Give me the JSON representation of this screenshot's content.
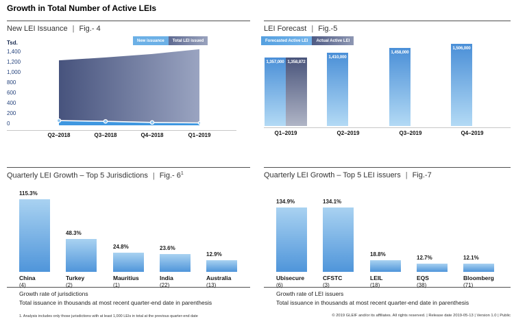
{
  "page_title": "Growth in Total Number of Active LEIs",
  "ui": {
    "pipe": "|"
  },
  "colors": {
    "bar_blue_top": "#4a8fd7",
    "bar_blue_bottom": "#b3daf5",
    "growth_bar_top": "#a9d2f1",
    "growth_bar_bottom": "#4f95da",
    "slate_dark": "#47537d",
    "slate_light": "#9aa4c1",
    "new_issuance_band": "#3f97e0",
    "axis_label_navy": "#24427c",
    "divider_gray": "#4d4d4d"
  },
  "chart_data": [
    {
      "type": "area",
      "title": "New LEI Issuance",
      "fig_label": "Fig.- 4",
      "y_unit": "Tsd.",
      "legend": [
        "New issuance",
        "Total LEI issued"
      ],
      "legend_position": "top-right",
      "grid": false,
      "x": [
        "Q2–2018",
        "Q3–2018",
        "Q4–2018",
        "Q1–2019"
      ],
      "series": [
        {
          "name": "New issuance",
          "values": [
            90,
            75,
            55,
            45
          ]
        },
        {
          "name": "Total LEI issued",
          "values": [
            1230,
            1285,
            1350,
            1440
          ]
        }
      ],
      "ylim": [
        0,
        1400
      ],
      "yticks": [
        "1,400",
        "1,200",
        "1,000",
        "800",
        "600",
        "400",
        "200",
        "0"
      ]
    },
    {
      "type": "bar",
      "title": "LEI Forecast",
      "fig_label": "Fig.-5",
      "legend": [
        "Forecasted Active LEI",
        "Actual Active LEI"
      ],
      "legend_position": "top-left",
      "grid": false,
      "categories": [
        "Q1–2019",
        "Q2–2019",
        "Q3–2019",
        "Q4–2019"
      ],
      "series": [
        {
          "name": "Forecasted Active LEI",
          "values": [
            1357000,
            1410000,
            1458000,
            1506000
          ],
          "labels": [
            "1,357,000",
            "1,410,000",
            "1,458,000",
            "1,506,000"
          ]
        },
        {
          "name": "Actual Active LEI",
          "values": [
            1358872,
            null,
            null,
            null
          ],
          "labels": [
            "1,358,872",
            null,
            null,
            null
          ]
        }
      ]
    },
    {
      "type": "bar",
      "title": "Quarterly LEI Growth – Top 5 Jurisdictions",
      "fig_label": "Fig.- 6",
      "fig_sup": "1",
      "grid": false,
      "categories": [
        "China",
        "Turkey",
        "Mauritius",
        "India",
        "Australia"
      ],
      "counts": [
        "(4)",
        "(2)",
        "(1)",
        "(22)",
        "(13)"
      ],
      "values": [
        115.3,
        48.3,
        24.8,
        23.6,
        12.9
      ],
      "labels": [
        "115.3%",
        "48.3%",
        "24.8%",
        "23.6%",
        "12.9%"
      ]
    },
    {
      "type": "bar",
      "title": "Quarterly LEI Growth – Top 5 LEI issuers",
      "fig_label": "Fig.-7",
      "grid": false,
      "categories": [
        "Ubisecure",
        "CFSTC",
        "LEIL",
        "EQS",
        "Bloomberg"
      ],
      "counts": [
        "(6)",
        "(3)",
        "(18)",
        "(38)",
        "(71)"
      ],
      "values": [
        134.9,
        134.1,
        18.8,
        12.7,
        12.1
      ],
      "labels": [
        "134.9%",
        "134.1%",
        "18.8%",
        "12.7%",
        "12.1%"
      ]
    }
  ],
  "notes": {
    "fig6": {
      "line1": "Growth rate of jurisdictions",
      "line2": "Total issuance in thousands at most recent quarter-end date in parenthesis",
      "footnote": "1. Analysis includes only those jurisdictions with at least 1,000 LEIs in total at the previous quarter-end date"
    },
    "fig7": {
      "line1": "Growth rate of LEI issuers",
      "line2": "Total issuance in thousands at most recent quarter-end date in parenthesis"
    }
  },
  "footer": "© 2019 GLEIF and/or its affiliates. All rights reserved.  |  Release date 2019-05-13  |  Version 1.0  |  Public"
}
